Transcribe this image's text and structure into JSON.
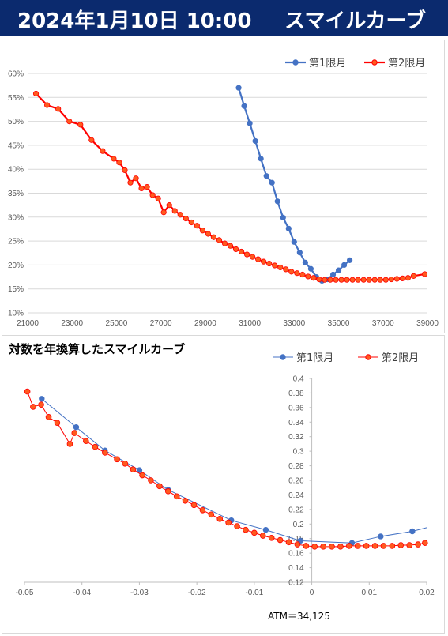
{
  "header": {
    "date": "2024年1月10日 10:00",
    "title": "スマイルカーブ",
    "bg": "#0b2a6e"
  },
  "colors": {
    "series1": "#4472c4",
    "series2": "#ff0000",
    "series2_fill": "#ff5a1f"
  },
  "chart_data": [
    {
      "type": "line",
      "title": "",
      "legend": "top-right",
      "grid": "horizontal",
      "xlim": [
        21000,
        39000
      ],
      "ylim": [
        10,
        60
      ],
      "x_ticks": [
        "21000",
        "23000",
        "25000",
        "27000",
        "29000",
        "31000",
        "33000",
        "35000",
        "37000",
        "39000"
      ],
      "y_ticks": [
        "10%",
        "15%",
        "20%",
        "25%",
        "30%",
        "35%",
        "40%",
        "45%",
        "50%",
        "55%",
        "60%"
      ],
      "series": [
        {
          "name": "第1限月",
          "x": [
            30500,
            30750,
            31000,
            31250,
            31500,
            31750,
            32000,
            32250,
            32500,
            32750,
            33000,
            33250,
            33500,
            33750,
            34000,
            34250,
            34500,
            34750,
            35000,
            35250,
            35500
          ],
          "values": [
            57.0,
            53.2,
            49.6,
            45.9,
            42.2,
            38.6,
            37.2,
            33.3,
            29.9,
            27.6,
            24.8,
            22.6,
            20.5,
            19.2,
            17.5,
            16.7,
            17.0,
            18.0,
            18.9,
            20.0,
            21.0
          ]
        },
        {
          "name": "第2限月",
          "x": [
            21375,
            21875,
            22375,
            22875,
            23375,
            23875,
            24375,
            24875,
            25125,
            25375,
            25625,
            25875,
            26125,
            26375,
            26625,
            26875,
            27125,
            27375,
            27625,
            27875,
            28125,
            28375,
            28625,
            28875,
            29125,
            29375,
            29625,
            29875,
            30125,
            30375,
            30625,
            30875,
            31125,
            31375,
            31625,
            31875,
            32125,
            32375,
            32625,
            32875,
            33125,
            33375,
            33625,
            33875,
            34125,
            34375,
            34625,
            34875,
            35125,
            35375,
            35625,
            35875,
            36125,
            36375,
            36625,
            36875,
            37125,
            37375,
            37625,
            37875,
            38125,
            38375,
            38875
          ],
          "values": [
            55.8,
            53.4,
            52.6,
            50.0,
            49.3,
            46.1,
            43.8,
            42.2,
            41.4,
            39.8,
            37.2,
            38.1,
            36.0,
            36.3,
            34.6,
            33.9,
            31.0,
            32.5,
            31.3,
            30.5,
            29.7,
            28.9,
            28.2,
            27.2,
            26.5,
            25.8,
            25.2,
            24.5,
            24.0,
            23.3,
            22.8,
            22.2,
            21.7,
            21.2,
            20.7,
            20.3,
            19.9,
            19.5,
            19.1,
            18.6,
            18.3,
            18.0,
            17.6,
            17.3,
            17.0,
            16.9,
            16.9,
            16.9,
            16.9,
            16.9,
            16.9,
            16.9,
            16.9,
            16.9,
            16.9,
            16.9,
            16.9,
            17.0,
            17.1,
            17.2,
            17.3,
            17.7,
            18.1
          ]
        }
      ]
    },
    {
      "type": "line",
      "title": "対数を年換算したスマイルカーブ",
      "legend": "top-right",
      "grid": "none",
      "xlim": [
        -0.05,
        0.02
      ],
      "ylim": [
        0.12,
        0.4
      ],
      "x_ticks": [
        "-0.05",
        "-0.04",
        "-0.03",
        "-0.02",
        "-0.01",
        "0",
        "0.01",
        "0.02"
      ],
      "y_ticks": [
        "0.12",
        "0.14",
        "0.16",
        "0.18",
        "0.2",
        "0.22",
        "0.24",
        "0.26",
        "0.28",
        "0.3",
        "0.32",
        "0.34",
        "0.36",
        "0.38",
        "0.4"
      ],
      "annotation": "ATM＝34,125",
      "series": [
        {
          "name": "第1限月",
          "x": [
            -0.047,
            -0.041,
            -0.036,
            -0.03,
            -0.025,
            -0.014,
            -0.008,
            -0.002,
            0.007,
            0.012,
            0.0175,
            0.0225
          ],
          "values": [
            0.372,
            0.333,
            0.301,
            0.274,
            0.247,
            0.205,
            0.192,
            0.177,
            0.174,
            0.183,
            0.19,
            0.2
          ]
        },
        {
          "name": "第2限月",
          "x": [
            -0.0495,
            -0.0485,
            -0.0471,
            -0.0458,
            -0.0443,
            -0.0421,
            -0.0413,
            -0.0393,
            -0.0377,
            -0.036,
            -0.0339,
            -0.0325,
            -0.0311,
            -0.0295,
            -0.028,
            -0.0265,
            -0.025,
            -0.0235,
            -0.022,
            -0.0205,
            -0.019,
            -0.0175,
            -0.016,
            -0.0145,
            -0.013,
            -0.0115,
            -0.01,
            -0.0085,
            -0.007,
            -0.0055,
            -0.004,
            -0.0025,
            -0.001,
            0.0005,
            0.002,
            0.0035,
            0.005,
            0.0065,
            0.008,
            0.0095,
            0.011,
            0.0125,
            0.014,
            0.0155,
            0.017,
            0.0185,
            0.0197
          ],
          "values": [
            0.382,
            0.361,
            0.364,
            0.347,
            0.339,
            0.31,
            0.325,
            0.314,
            0.306,
            0.298,
            0.289,
            0.283,
            0.275,
            0.267,
            0.26,
            0.252,
            0.245,
            0.238,
            0.232,
            0.226,
            0.219,
            0.213,
            0.207,
            0.202,
            0.197,
            0.192,
            0.188,
            0.184,
            0.181,
            0.178,
            0.175,
            0.172,
            0.17,
            0.169,
            0.169,
            0.169,
            0.169,
            0.17,
            0.17,
            0.17,
            0.17,
            0.17,
            0.17,
            0.171,
            0.171,
            0.172,
            0.174
          ]
        }
      ]
    }
  ]
}
